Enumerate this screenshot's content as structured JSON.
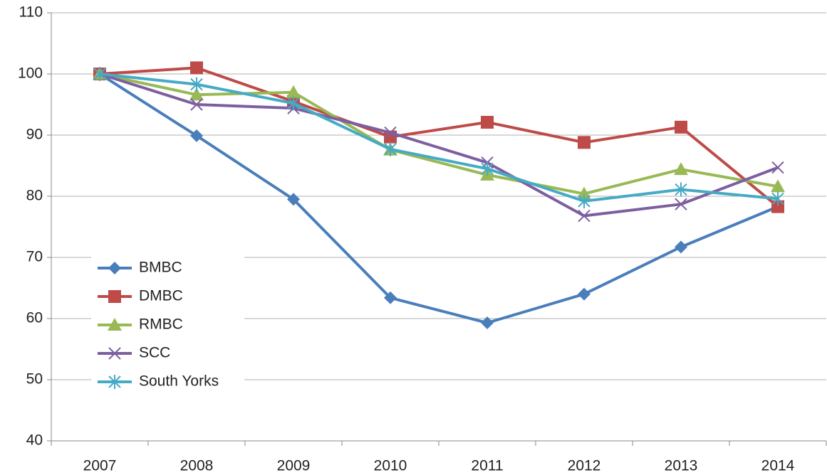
{
  "chart_data": {
    "type": "line",
    "categories": [
      "2007",
      "2008",
      "2009",
      "2010",
      "2011",
      "2012",
      "2013",
      "2014"
    ],
    "series": [
      {
        "name": "BMBC",
        "color": "#4a7ebb",
        "marker": "diamond",
        "values": [
          100,
          89.9,
          79.5,
          63.4,
          59.3,
          64.0,
          71.7,
          78.3
        ]
      },
      {
        "name": "DMBC",
        "color": "#be4b48",
        "marker": "square",
        "values": [
          100,
          101,
          95.5,
          89.7,
          92.1,
          88.8,
          91.3,
          78.3
        ]
      },
      {
        "name": "RMBC",
        "color": "#98b954",
        "marker": "triangle",
        "values": [
          100,
          96.6,
          97.0,
          87.6,
          83.5,
          80.4,
          84.4,
          81.6
        ]
      },
      {
        "name": "SCC",
        "color": "#7d5fa0",
        "marker": "x",
        "values": [
          100,
          95.0,
          94.4,
          90.4,
          85.5,
          76.8,
          78.7,
          84.7
        ]
      },
      {
        "name": "South Yorks",
        "color": "#46aac5",
        "marker": "star",
        "values": [
          100,
          98.3,
          95.2,
          87.7,
          84.5,
          79.2,
          81.1,
          79.6
        ]
      }
    ],
    "ylim": [
      40,
      110
    ],
    "yticks": [
      40,
      50,
      60,
      70,
      80,
      90,
      100,
      110
    ],
    "grid": true,
    "legend": "lower left"
  }
}
